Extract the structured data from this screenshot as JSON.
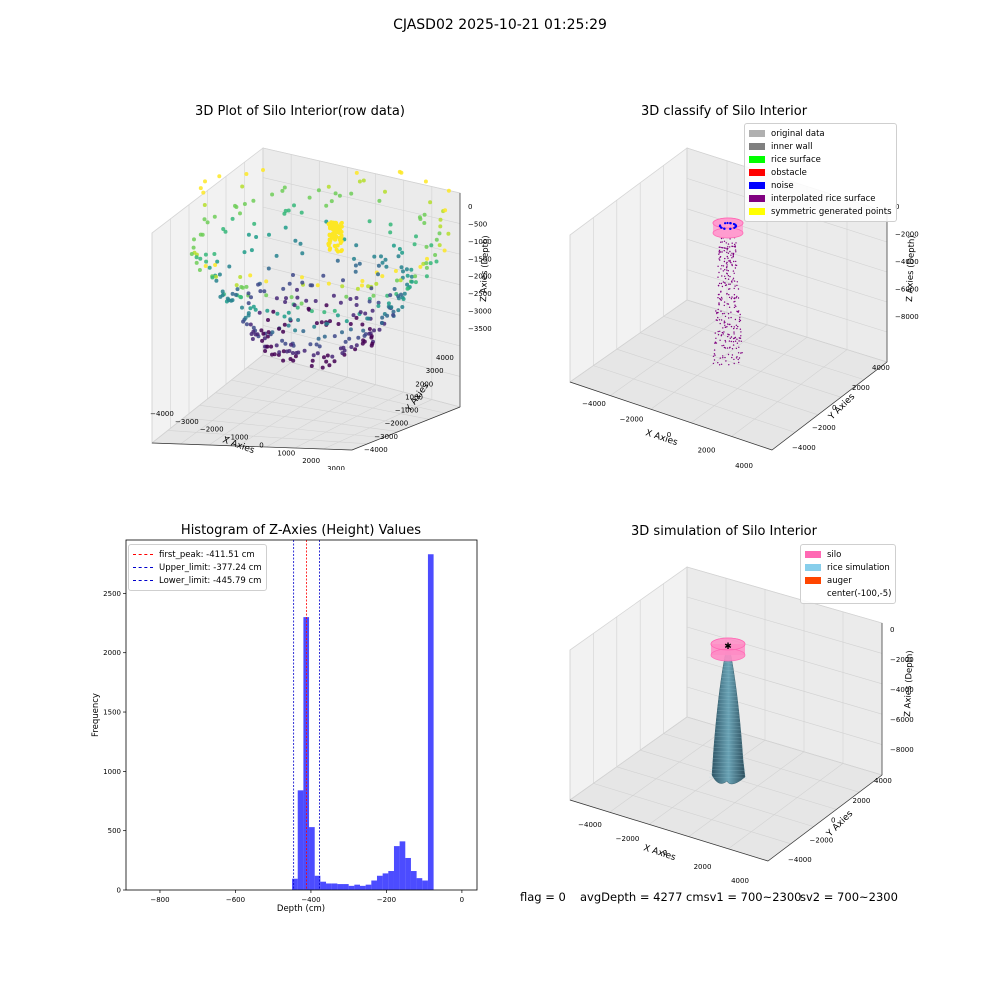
{
  "suptitle": "CJASD02 2025-10-21 01:25:29",
  "plot_raw": {
    "title": "3D Plot of Silo Interior(row data)",
    "xlabel": "X Axies",
    "ylabel": "Y Axies",
    "zlabel": "Z Axies (Depth)",
    "xticks": [
      "−4000",
      "−3000",
      "−2000",
      "−1000",
      "0",
      "1000",
      "2000",
      "3000"
    ],
    "yticks": [
      "4000",
      "3000",
      "2000",
      "1000",
      "−1000",
      "−2000",
      "−3000",
      "−4000"
    ],
    "zticks": [
      "0",
      "−500",
      "−1000",
      "−1500",
      "−2000",
      "−2500",
      "−3000",
      "−3500"
    ]
  },
  "plot_classify": {
    "title": "3D classify of Silo Interior",
    "xlabel": "X Axies",
    "ylabel": "Y Axies",
    "zlabel": "Z Axies (Depth)",
    "xticks": [
      "−4000",
      "−2000",
      "0",
      "2000",
      "4000"
    ],
    "yticks": [
      "4000",
      "2000",
      "0",
      "−2000",
      "−4000"
    ],
    "zticks": [
      "0",
      "−2000",
      "−4000",
      "−6000",
      "−8000"
    ],
    "legend": [
      {
        "label": "original data",
        "color": "#b0b0b0"
      },
      {
        "label": "inner wall",
        "color": "#808080"
      },
      {
        "label": "rice surface",
        "color": "#00ff00"
      },
      {
        "label": "obstacle",
        "color": "#ff0000"
      },
      {
        "label": "noise",
        "color": "#0000ff"
      },
      {
        "label": "interpolated rice surface",
        "color": "#800080"
      },
      {
        "label": "symmetric generated points",
        "color": "#ffff00"
      }
    ]
  },
  "plot_hist": {
    "title": "Histogram of Z-Axies (Height) Values",
    "xlabel": "Depth (cm)",
    "ylabel": "Frequency",
    "xticks": [
      "−800",
      "−600",
      "−400",
      "−200",
      "0"
    ],
    "yticks": [
      "0",
      "500",
      "1000",
      "1500",
      "2000",
      "2500"
    ],
    "legend": [
      {
        "label": "first_peak: -411.51 cm",
        "color": "#ff0000"
      },
      {
        "label": "Upper_limit: -377.24 cm",
        "color": "#0000cc"
      },
      {
        "label": "Lower_limit: -445.79 cm",
        "color": "#0000cc"
      }
    ]
  },
  "plot_sim": {
    "title": "3D simulation of Silo Interior",
    "xlabel": "X Axies",
    "ylabel": "Y Axies",
    "zlabel": "Z Axies (Depth)",
    "xticks": [
      "−4000",
      "−2000",
      "0",
      "2000",
      "4000"
    ],
    "yticks": [
      "4000",
      "2000",
      "0",
      "−2000",
      "−4000"
    ],
    "zticks": [
      "0",
      "−2000",
      "−4000",
      "−6000",
      "−8000"
    ],
    "legend": [
      {
        "label": "silo",
        "color": "#ff69b4"
      },
      {
        "label": "rice simulation",
        "color": "#87ceeb"
      },
      {
        "label": "auger",
        "color": "#ff4500"
      },
      {
        "label": "center(-100,-5)",
        "color": ""
      }
    ]
  },
  "footer": {
    "flag": "flag = 0",
    "avg": "avgDepth = 4277 cmsv1 = 700~2300",
    "sv2": "sv2 = 700~2300"
  },
  "chart_data": [
    {
      "type": "bar",
      "title": "Histogram of Z-Axies (Height) Values",
      "xlabel": "Depth (cm)",
      "ylabel": "Frequency",
      "xlim": [
        -890,
        40
      ],
      "ylim": [
        0,
        2950
      ],
      "bin_width": 15,
      "bin_centers": [
        -442.5,
        -427.5,
        -412.5,
        -397.5,
        -382.5,
        -367.5,
        -352.5,
        -337.5,
        -322.5,
        -307.5,
        -292.5,
        -277.5,
        -262.5,
        -247.5,
        -232.5,
        -217.5,
        -202.5,
        -187.5,
        -172.5,
        -157.5,
        -142.5,
        -127.5,
        -112.5,
        -97.5,
        -82.5,
        -67.5,
        -52.5,
        -37.5,
        -22.5,
        -7.5
      ],
      "values": [
        95,
        840,
        2300,
        530,
        120,
        70,
        55,
        55,
        50,
        50,
        35,
        45,
        35,
        45,
        80,
        120,
        140,
        160,
        370,
        410,
        270,
        160,
        100,
        80,
        2830,
        0,
        0,
        0,
        0,
        0
      ],
      "vlines": [
        {
          "label": "first_peak",
          "x": -411.51,
          "color": "#ff0000"
        },
        {
          "label": "Upper_limit",
          "x": -377.24,
          "color": "#0000cc"
        },
        {
          "label": "Lower_limit",
          "x": -445.79,
          "color": "#0000cc"
        }
      ]
    },
    {
      "type": "scatter",
      "title": "3D Plot of Silo Interior(row data)",
      "xlim": [
        -4000,
        3000
      ],
      "ylim": [
        -4000,
        4000
      ],
      "zlim": [
        -3800,
        200
      ]
    },
    {
      "type": "scatter",
      "title": "3D classify of Silo Interior",
      "xlim": [
        -4000,
        4000
      ],
      "ylim": [
        -4000,
        4000
      ],
      "zlim": [
        -9000,
        0
      ]
    },
    {
      "type": "area",
      "title": "3D simulation of Silo Interior",
      "xlim": [
        -4000,
        4000
      ],
      "ylim": [
        -4000,
        4000
      ],
      "zlim": [
        -9000,
        0
      ]
    }
  ]
}
